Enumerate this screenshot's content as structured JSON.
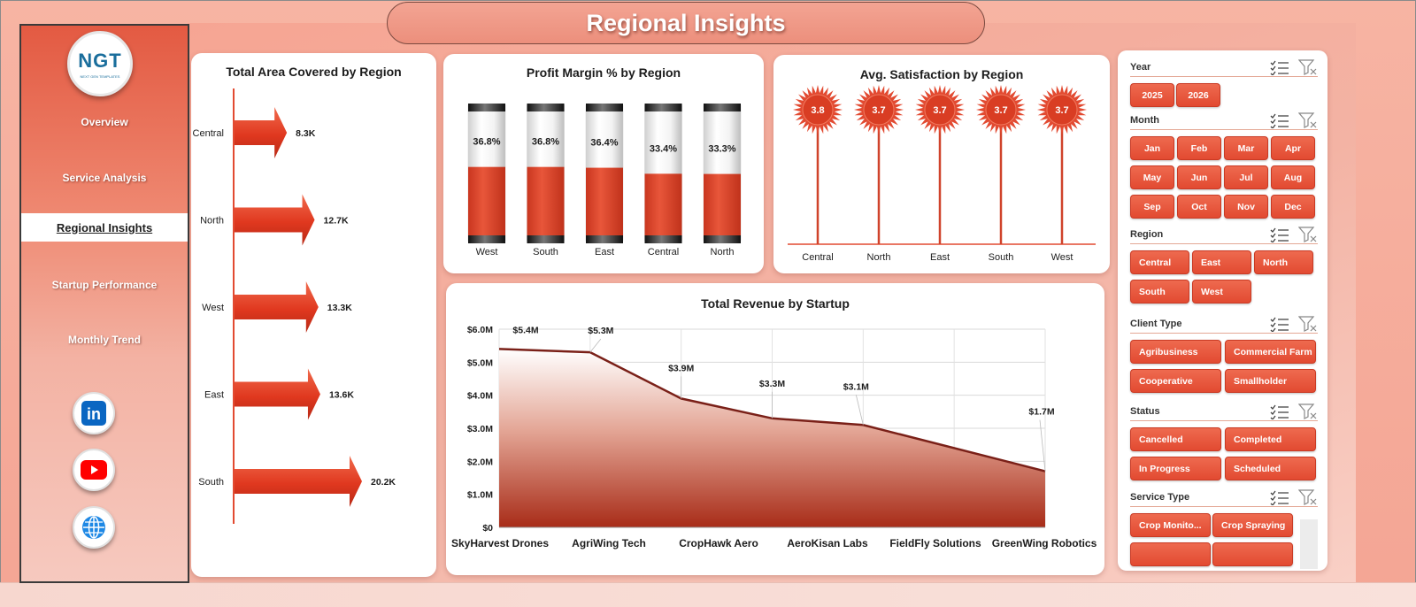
{
  "header": {
    "title": "Regional Insights"
  },
  "sidebar": {
    "logo": {
      "text": "NGT",
      "subtext": "NEXT GEN TEMPLATES"
    },
    "items": [
      {
        "label": "Overview",
        "active": false
      },
      {
        "label": "Service Analysis",
        "active": false
      },
      {
        "label": "Regional Insights",
        "active": true
      },
      {
        "label": "Startup Performance",
        "active": false
      },
      {
        "label": "Monthly Trend",
        "active": false
      }
    ],
    "social": [
      {
        "icon": "linkedin-icon",
        "text": "in",
        "color": "#0a66c2"
      },
      {
        "icon": "youtube-icon",
        "color": "#ff0000"
      },
      {
        "icon": "globe-icon",
        "color": "#1e88e5"
      }
    ]
  },
  "charts": {
    "area": {
      "title": "Total Area Covered by Region",
      "categories": [
        "Central",
        "North",
        "West",
        "East",
        "South"
      ],
      "values": [
        8300,
        12700,
        13300,
        13600,
        20200
      ],
      "labels": [
        "8.3K",
        "12.7K",
        "13.3K",
        "13.6K",
        "20.2K"
      ]
    },
    "profit": {
      "title": "Profit Margin % by Region",
      "categories": [
        "West",
        "South",
        "East",
        "Central",
        "North"
      ],
      "values": [
        36.8,
        36.8,
        36.4,
        33.4,
        33.3
      ],
      "labels": [
        "36.8%",
        "36.8%",
        "36.4%",
        "33.4%",
        "33.3%"
      ]
    },
    "satisfaction": {
      "title": "Avg. Satisfaction by Region",
      "categories": [
        "Central",
        "North",
        "East",
        "South",
        "West"
      ],
      "values": [
        3.8,
        3.7,
        3.7,
        3.7,
        3.7
      ],
      "labels": [
        "3.8",
        "3.7",
        "3.7",
        "3.7",
        "3.7"
      ]
    },
    "revenue": {
      "title": "Total Revenue by Startup",
      "categories": [
        "SkyHarvest Drones",
        "AgriWing Tech",
        "CropHawk Aero",
        "AeroKisan Labs",
        "FieldFly Solutions",
        "GreenWing Robotics"
      ],
      "values": [
        5.4,
        5.3,
        3.9,
        3.3,
        3.1,
        1.7
      ],
      "labels": [
        "$5.4M",
        "$5.3M",
        "$3.9M",
        "$3.3M",
        "$3.1M",
        "$1.7M"
      ],
      "yticks": [
        "$0",
        "$1.0M",
        "$2.0M",
        "$3.0M",
        "$4.0M",
        "$5.0M",
        "$6.0M"
      ]
    }
  },
  "chart_data": [
    {
      "type": "bar",
      "title": "Total Area Covered by Region",
      "categories": [
        "Central",
        "North",
        "West",
        "East",
        "South"
      ],
      "values": [
        8300,
        12700,
        13300,
        13600,
        20200
      ]
    },
    {
      "type": "bar",
      "title": "Profit Margin % by Region",
      "categories": [
        "West",
        "South",
        "East",
        "Central",
        "North"
      ],
      "values": [
        36.8,
        36.8,
        36.4,
        33.4,
        33.3
      ]
    },
    {
      "type": "bar",
      "title": "Avg. Satisfaction by Region",
      "categories": [
        "Central",
        "North",
        "East",
        "South",
        "West"
      ],
      "values": [
        3.8,
        3.7,
        3.7,
        3.7,
        3.7
      ]
    },
    {
      "type": "area",
      "title": "Total Revenue by Startup",
      "categories": [
        "SkyHarvest Drones",
        "AgriWing Tech",
        "CropHawk Aero",
        "AeroKisan Labs",
        "FieldFly Solutions",
        "GreenWing Robotics"
      ],
      "values": [
        5.4,
        5.3,
        3.9,
        3.3,
        3.1,
        1.7
      ],
      "ylim": [
        0,
        6.0
      ],
      "grid": true
    }
  ],
  "slicers": [
    {
      "label": "Year",
      "options": [
        "2025",
        "2026"
      ]
    },
    {
      "label": "Month",
      "options": [
        "Jan",
        "Feb",
        "Mar",
        "Apr",
        "May",
        "Jun",
        "Jul",
        "Aug",
        "Sep",
        "Oct",
        "Nov",
        "Dec"
      ]
    },
    {
      "label": "Region",
      "options": [
        "Central",
        "East",
        "North",
        "South",
        "West"
      ]
    },
    {
      "label": "Client Type",
      "options": [
        "Agribusiness",
        "Commercial Farm",
        "Cooperative",
        "Smallholder"
      ]
    },
    {
      "label": "Status",
      "options": [
        "Cancelled",
        "Completed",
        "In Progress",
        "Scheduled"
      ]
    },
    {
      "label": "Service Type",
      "options": [
        "Crop Monito...",
        "Crop Spraying"
      ]
    }
  ],
  "colors": {
    "accent": "#e24a31",
    "dark_line": "#7a2018",
    "sidebar_top": "#e35a42"
  }
}
